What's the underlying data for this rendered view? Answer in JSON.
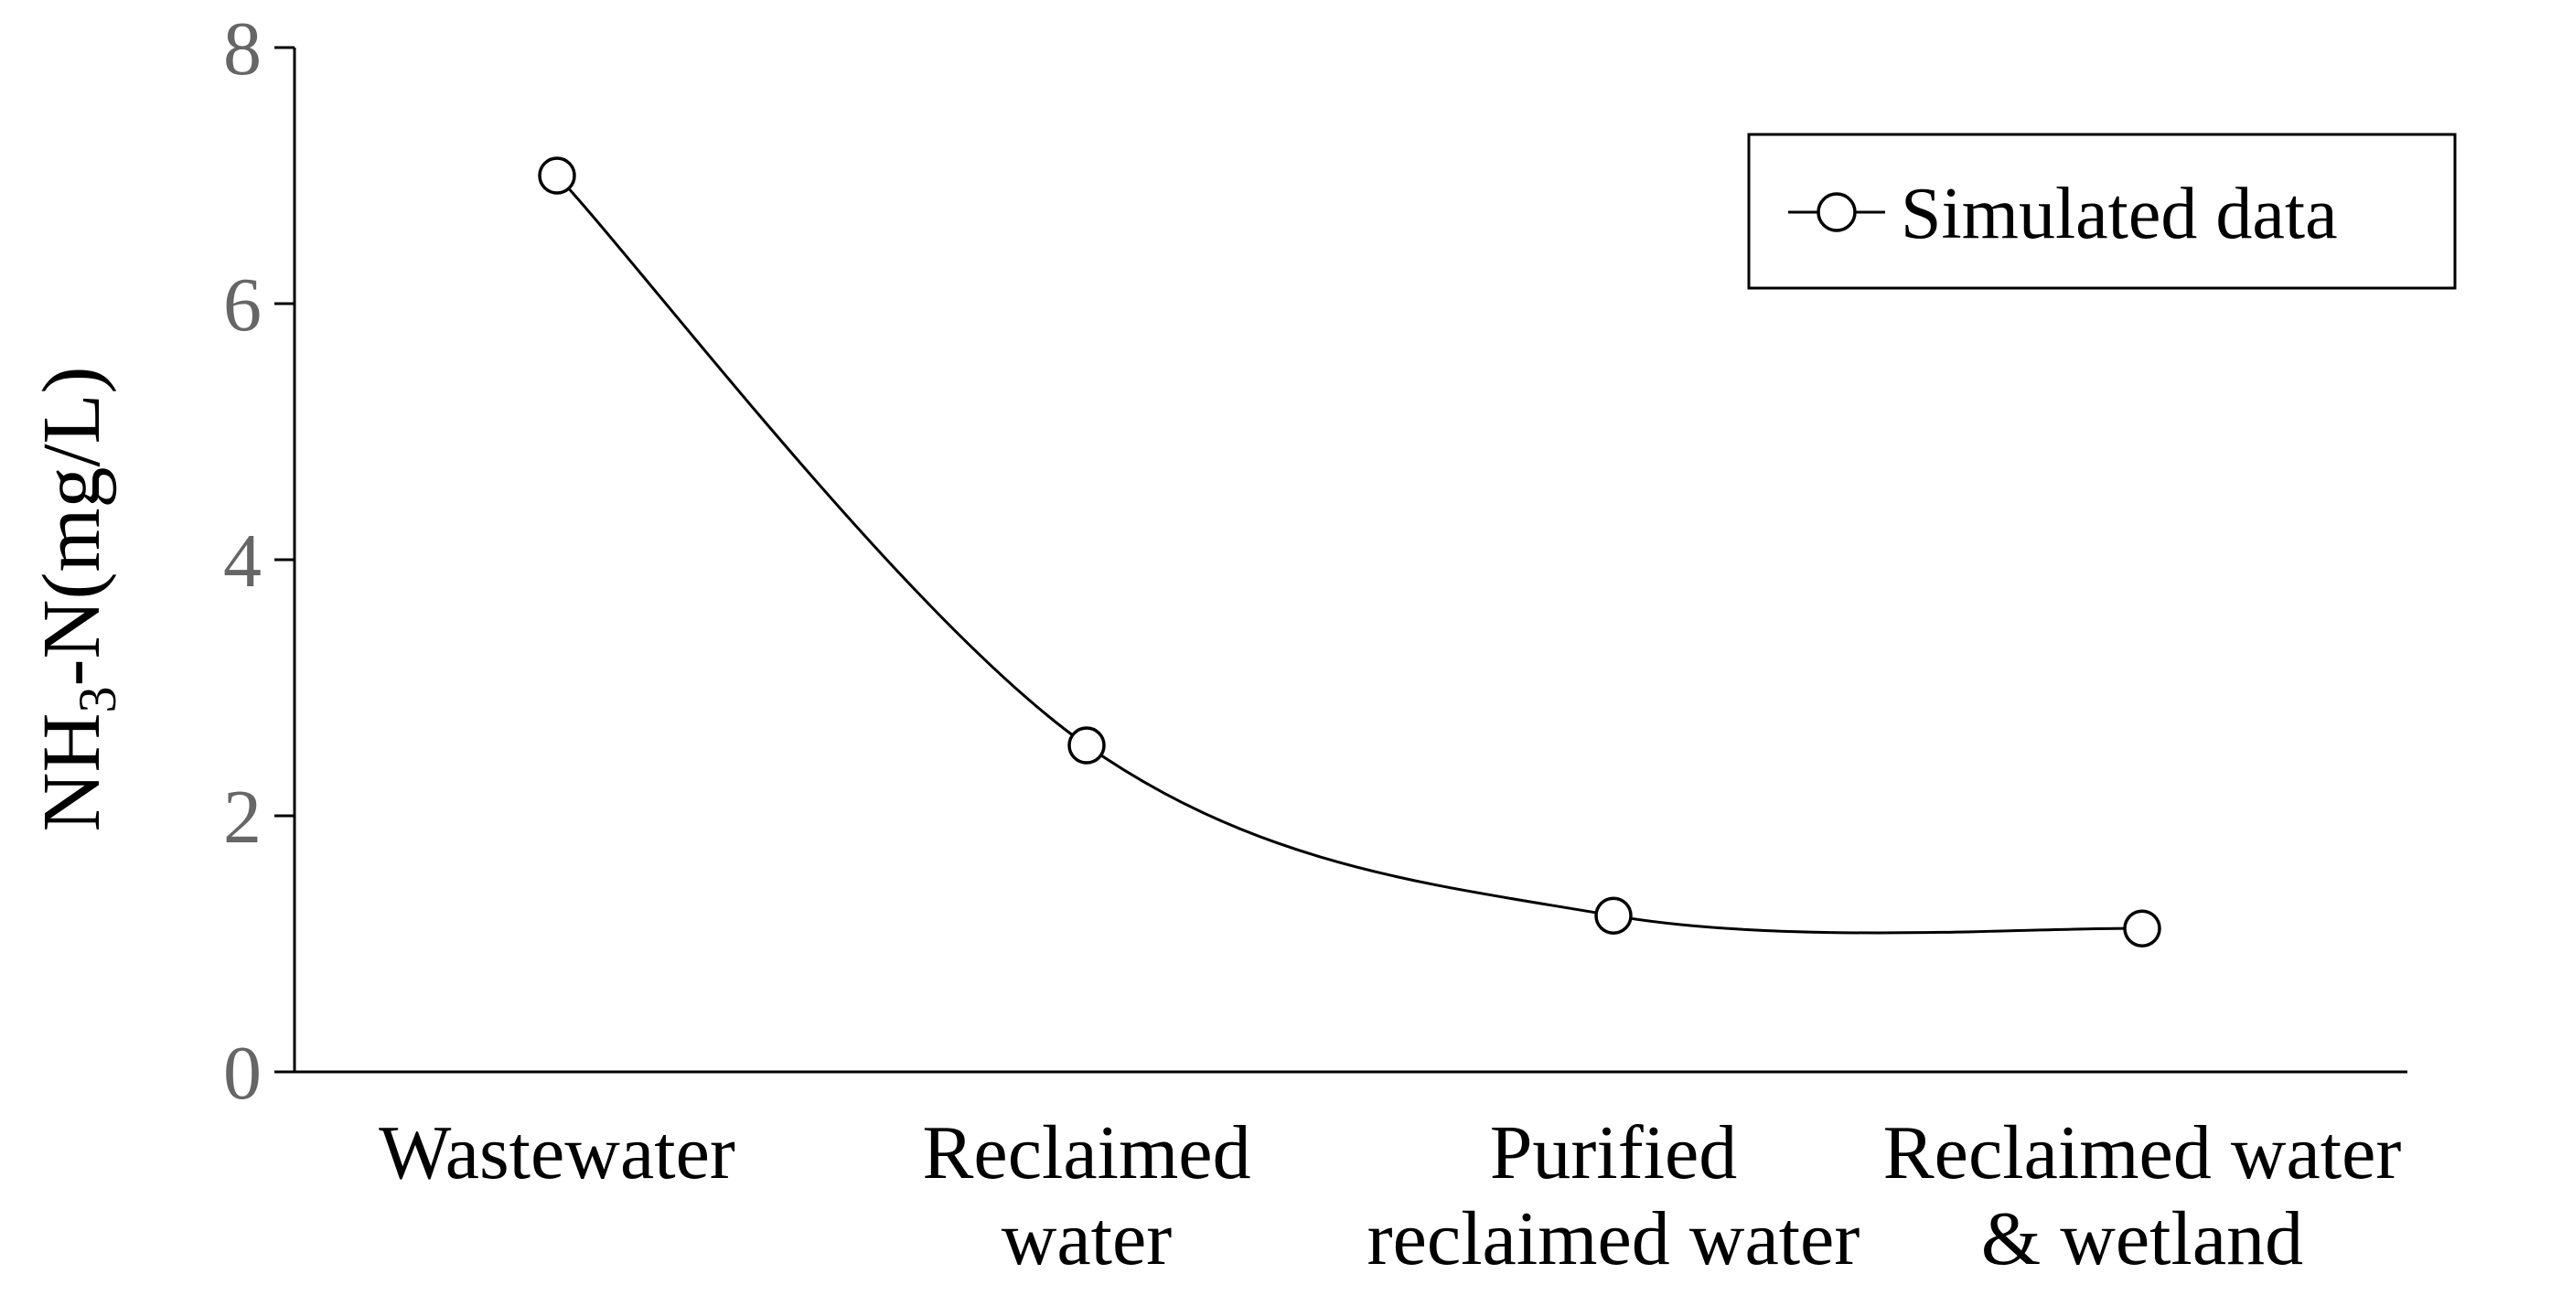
{
  "chart_data": {
    "type": "line",
    "title": "",
    "xlabel": "",
    "ylabel": "NH3-N(mg/L)",
    "ylabel_parts": {
      "main": "NH",
      "sub": "3",
      "rest": "-N(mg/L)"
    },
    "ylim": [
      0,
      8
    ],
    "yticks": [
      0,
      2,
      4,
      6,
      8
    ],
    "categories": [
      [
        "Wastewater"
      ],
      [
        "Reclaimed",
        "water"
      ],
      [
        "Purified",
        "reclaimed water"
      ],
      [
        "Reclaimed water",
        "& wetland"
      ]
    ],
    "series": [
      {
        "name": "Simulated data",
        "values": [
          7.0,
          2.55,
          1.22,
          1.12
        ]
      }
    ],
    "legend": {
      "position": "top-right",
      "entries": [
        "Simulated data"
      ]
    },
    "grid": false,
    "smooth": true
  }
}
